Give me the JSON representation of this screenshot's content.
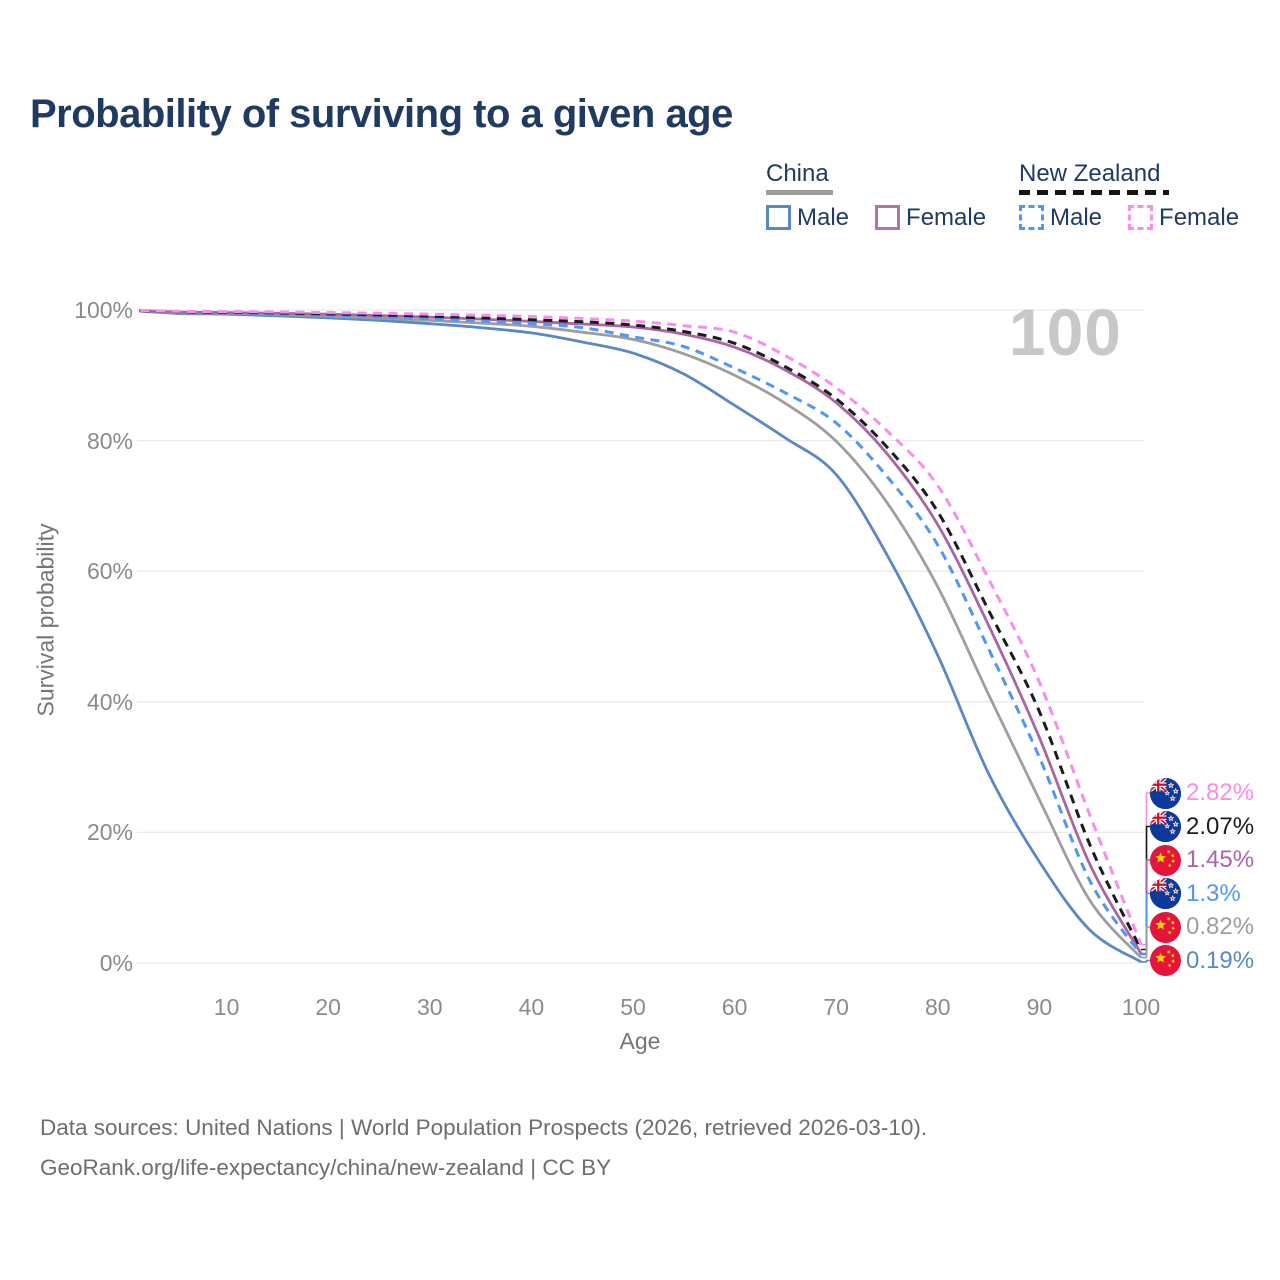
{
  "title": "Probability of surviving to a given age",
  "watermark": "100",
  "legend": {
    "groups": [
      {
        "label": "China",
        "underline_style": "solid",
        "underline_color": "#9e9e9e",
        "items": [
          {
            "label": "Male",
            "color": "#5b87c5",
            "dashed": false
          },
          {
            "label": "Female",
            "color": "#b273aa",
            "dashed": false
          }
        ]
      },
      {
        "label": "New Zealand",
        "underline_style": "dashed",
        "underline_color": "#151515",
        "items": [
          {
            "label": "Male",
            "color": "#4f97f6",
            "dashed": true
          },
          {
            "label": "Female",
            "color": "#fa8ceb",
            "dashed": true
          }
        ]
      }
    ]
  },
  "chart_data": {
    "type": "line",
    "title": "Probability of surviving to a given age",
    "xlabel": "Age",
    "ylabel": "Survival probability",
    "xlim": [
      0,
      100
    ],
    "ylim": [
      0,
      100
    ],
    "grid": "horizontal-only",
    "x_ticks": [
      10,
      20,
      30,
      40,
      50,
      60,
      70,
      80,
      90,
      100
    ],
    "y_ticks": [
      {
        "value": 0,
        "label": "0%"
      },
      {
        "value": 20,
        "label": "20%"
      },
      {
        "value": 40,
        "label": "40%"
      },
      {
        "value": 60,
        "label": "60%"
      },
      {
        "value": 80,
        "label": "80%"
      },
      {
        "value": 100,
        "label": "100%"
      }
    ],
    "ages": [
      0,
      5,
      10,
      15,
      20,
      25,
      30,
      35,
      40,
      45,
      50,
      55,
      60,
      65,
      70,
      75,
      80,
      85,
      90,
      95,
      100
    ],
    "series": [
      {
        "name": "China Male",
        "flag": "cn",
        "color": "#5b87c5",
        "dashed": false,
        "end_label": "0.19%",
        "values": [
          100,
          99.5,
          99.35,
          99.1,
          98.8,
          98.4,
          97.9,
          97.3,
          96.5,
          95.1,
          93.4,
          90.2,
          85.4,
          80.4,
          74.8,
          62.5,
          47.1,
          29.0,
          15.5,
          5.0,
          0.19
        ]
      },
      {
        "name": "China",
        "flag": "cn",
        "color": "#9e9e9e",
        "dashed": false,
        "end_label": "0.82%",
        "values": [
          100,
          99.6,
          99.5,
          99.3,
          99.05,
          98.75,
          98.4,
          98.0,
          97.5,
          96.6,
          95.5,
          93.3,
          90.0,
          85.7,
          79.9,
          70.5,
          57.6,
          41.1,
          25.0,
          9.5,
          0.82
        ]
      },
      {
        "name": "China Female",
        "flag": "cn",
        "color": "#a965a4",
        "dashed": false,
        "end_label": "1.45%",
        "values": [
          100,
          99.7,
          99.6,
          99.5,
          99.35,
          99.15,
          98.9,
          98.6,
          98.25,
          97.85,
          97.4,
          96.3,
          94.3,
          90.8,
          85.8,
          78.0,
          67.1,
          51.7,
          34.5,
          15.0,
          1.45
        ]
      },
      {
        "name": "New Zealand Male",
        "flag": "nz",
        "color": "#4f97f6",
        "dashed": true,
        "end_label": "1.3%",
        "values": [
          100,
          99.65,
          99.55,
          99.4,
          99.2,
          98.95,
          98.65,
          98.3,
          97.9,
          97.3,
          95.9,
          94.4,
          91.1,
          87.3,
          82.7,
          74.5,
          64.0,
          48.1,
          31.5,
          12.5,
          1.3
        ]
      },
      {
        "name": "New Zealand",
        "flag": "nz",
        "color": "#1c1c1c",
        "dashed": true,
        "end_label": "2.07%",
        "values": [
          100,
          99.75,
          99.65,
          99.55,
          99.4,
          99.25,
          99.05,
          98.8,
          98.5,
          98.2,
          97.7,
          96.7,
          94.9,
          91.3,
          86.4,
          79.0,
          69.1,
          54.0,
          38.5,
          18.0,
          2.07
        ]
      },
      {
        "name": "New Zealand Female",
        "flag": "nz",
        "color": "#fa8ceb",
        "dashed": true,
        "end_label": "2.82%",
        "values": [
          100,
          99.8,
          99.75,
          99.7,
          99.6,
          99.5,
          99.35,
          99.2,
          99.0,
          98.7,
          98.3,
          97.6,
          96.6,
          93.0,
          88.1,
          81.5,
          73.1,
          58.8,
          43.0,
          22.5,
          2.82
        ]
      }
    ]
  },
  "footer": {
    "line1": "Data sources: United Nations | World Population Prospects (2026, retrieved 2026-03-10).",
    "line2": "GeoRank.org/life-expectancy/china/new-zealand | CC BY"
  }
}
